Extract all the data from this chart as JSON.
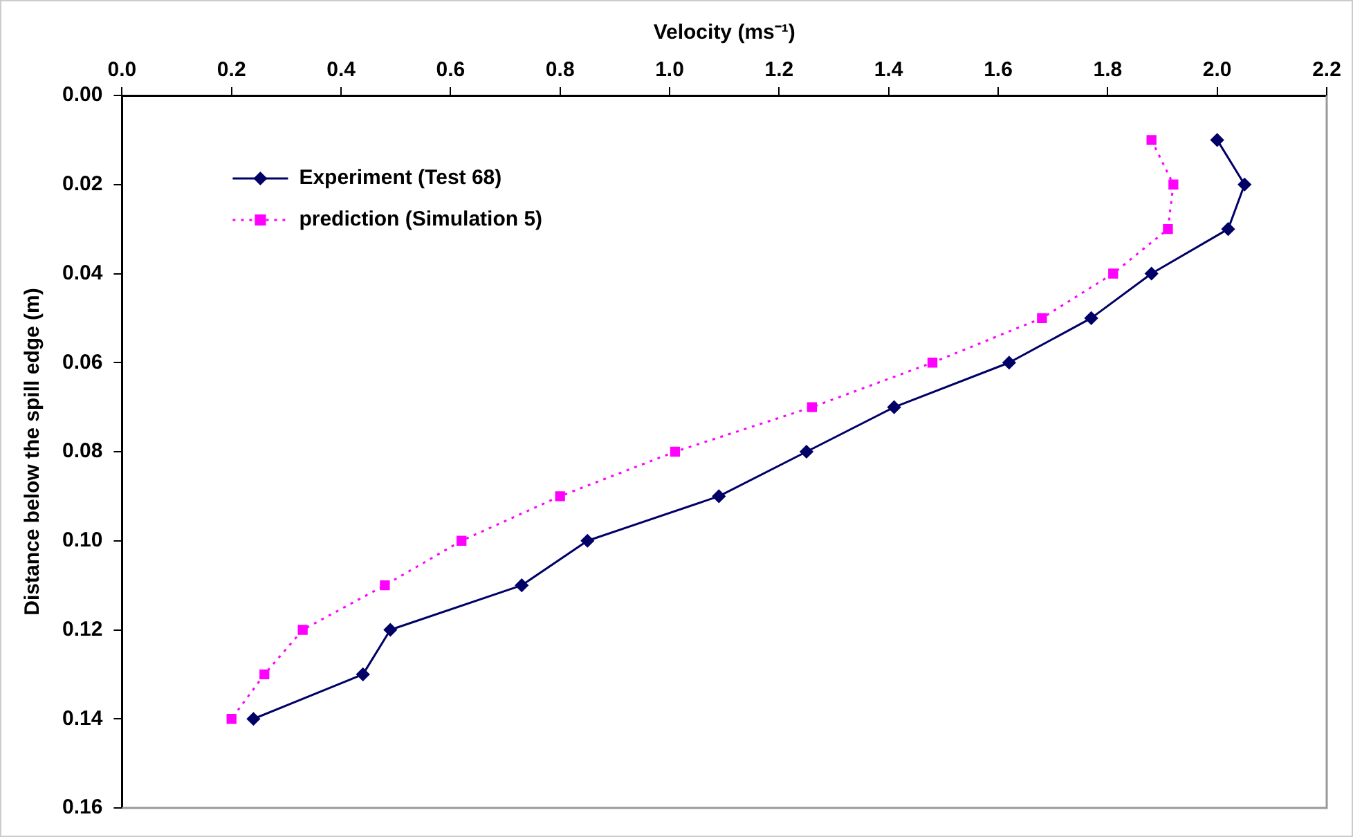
{
  "chart_data": {
    "type": "line",
    "xlabel": "Velocity (ms⁻¹)",
    "ylabel": "Distance below the spill edge (m)",
    "xlim": [
      0,
      2.2
    ],
    "xticks": [
      {
        "value": 0,
        "label": "0.0"
      },
      {
        "value": 0.2,
        "label": "0.2"
      },
      {
        "value": 0.4,
        "label": "0.4"
      },
      {
        "value": 0.6,
        "label": "0.6"
      },
      {
        "value": 0.8,
        "label": "0.8"
      },
      {
        "value": 1,
        "label": "1.0"
      },
      {
        "value": 1.2,
        "label": "1.2"
      },
      {
        "value": 1.4,
        "label": "1.4"
      },
      {
        "value": 1.6,
        "label": "1.6"
      },
      {
        "value": 1.8,
        "label": "1.8"
      },
      {
        "value": 2,
        "label": "2.0"
      },
      {
        "value": 2.2,
        "label": "2.2"
      }
    ],
    "ylim": [
      0.16,
      0
    ],
    "yticks": [
      {
        "value": 0,
        "label": "0.00"
      },
      {
        "value": 0.02,
        "label": "0.02"
      },
      {
        "value": 0.04,
        "label": "0.04"
      },
      {
        "value": 0.06,
        "label": "0.06"
      },
      {
        "value": 0.08,
        "label": "0.08"
      },
      {
        "value": 0.1,
        "label": "0.10"
      },
      {
        "value": 0.12,
        "label": "0.12"
      },
      {
        "value": 0.14,
        "label": "0.14"
      },
      {
        "value": 0.16,
        "label": "0.16"
      }
    ],
    "grid": false,
    "legend": "top left",
    "series": [
      {
        "name": "Experiment (Test 68)",
        "color": "#000066",
        "marker": "diamond",
        "line_style": "solid",
        "x": [
          2.0,
          2.05,
          2.02,
          1.88,
          1.77,
          1.62,
          1.41,
          1.25,
          1.09,
          0.85,
          0.73,
          0.49,
          0.44,
          0.24
        ],
        "values": [
          0.01,
          0.02,
          0.03,
          0.04,
          0.05,
          0.06,
          0.07,
          0.08,
          0.09,
          0.1,
          0.11,
          0.12,
          0.13,
          0.14
        ]
      },
      {
        "name": "prediction (Simulation 5)",
        "color": "#ff00ff",
        "marker": "square",
        "line_style": "dotted",
        "x": [
          1.88,
          1.92,
          1.91,
          1.81,
          1.68,
          1.48,
          1.26,
          1.01,
          0.8,
          0.62,
          0.48,
          0.33,
          0.26,
          0.2
        ],
        "values": [
          0.01,
          0.02,
          0.03,
          0.04,
          0.05,
          0.06,
          0.07,
          0.08,
          0.09,
          0.1,
          0.11,
          0.12,
          0.13,
          0.14
        ]
      }
    ]
  }
}
